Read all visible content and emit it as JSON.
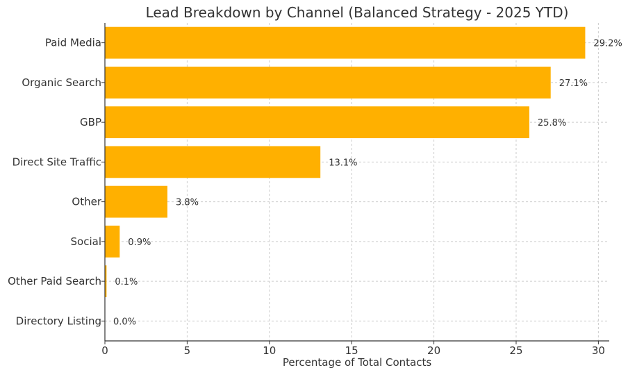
{
  "chart_data": {
    "type": "bar",
    "orientation": "horizontal",
    "title": "Lead Breakdown by Channel (Balanced Strategy - 2025 YTD)",
    "xlabel": "Percentage of Total Contacts",
    "ylabel": "",
    "categories": [
      "Paid Media",
      "Organic Search",
      "GBP",
      "Direct Site Traffic",
      "Other",
      "Social",
      "Other Paid Search",
      "Directory Listing"
    ],
    "values": [
      29.2,
      27.1,
      25.8,
      13.1,
      3.8,
      0.9,
      0.1,
      0.0
    ],
    "value_labels": [
      "29.2%",
      "27.1%",
      "25.8%",
      "13.1%",
      "3.8%",
      "0.9%",
      "0.1%",
      "0.0%"
    ],
    "xlim": [
      0,
      30.66
    ],
    "x_ticks": [
      0,
      5,
      10,
      15,
      20,
      25,
      30
    ],
    "x_tick_labels": [
      "0",
      "5",
      "10",
      "15",
      "20",
      "25",
      "30"
    ],
    "grid": true,
    "legend": "none",
    "bar_color": "#FFB000"
  }
}
